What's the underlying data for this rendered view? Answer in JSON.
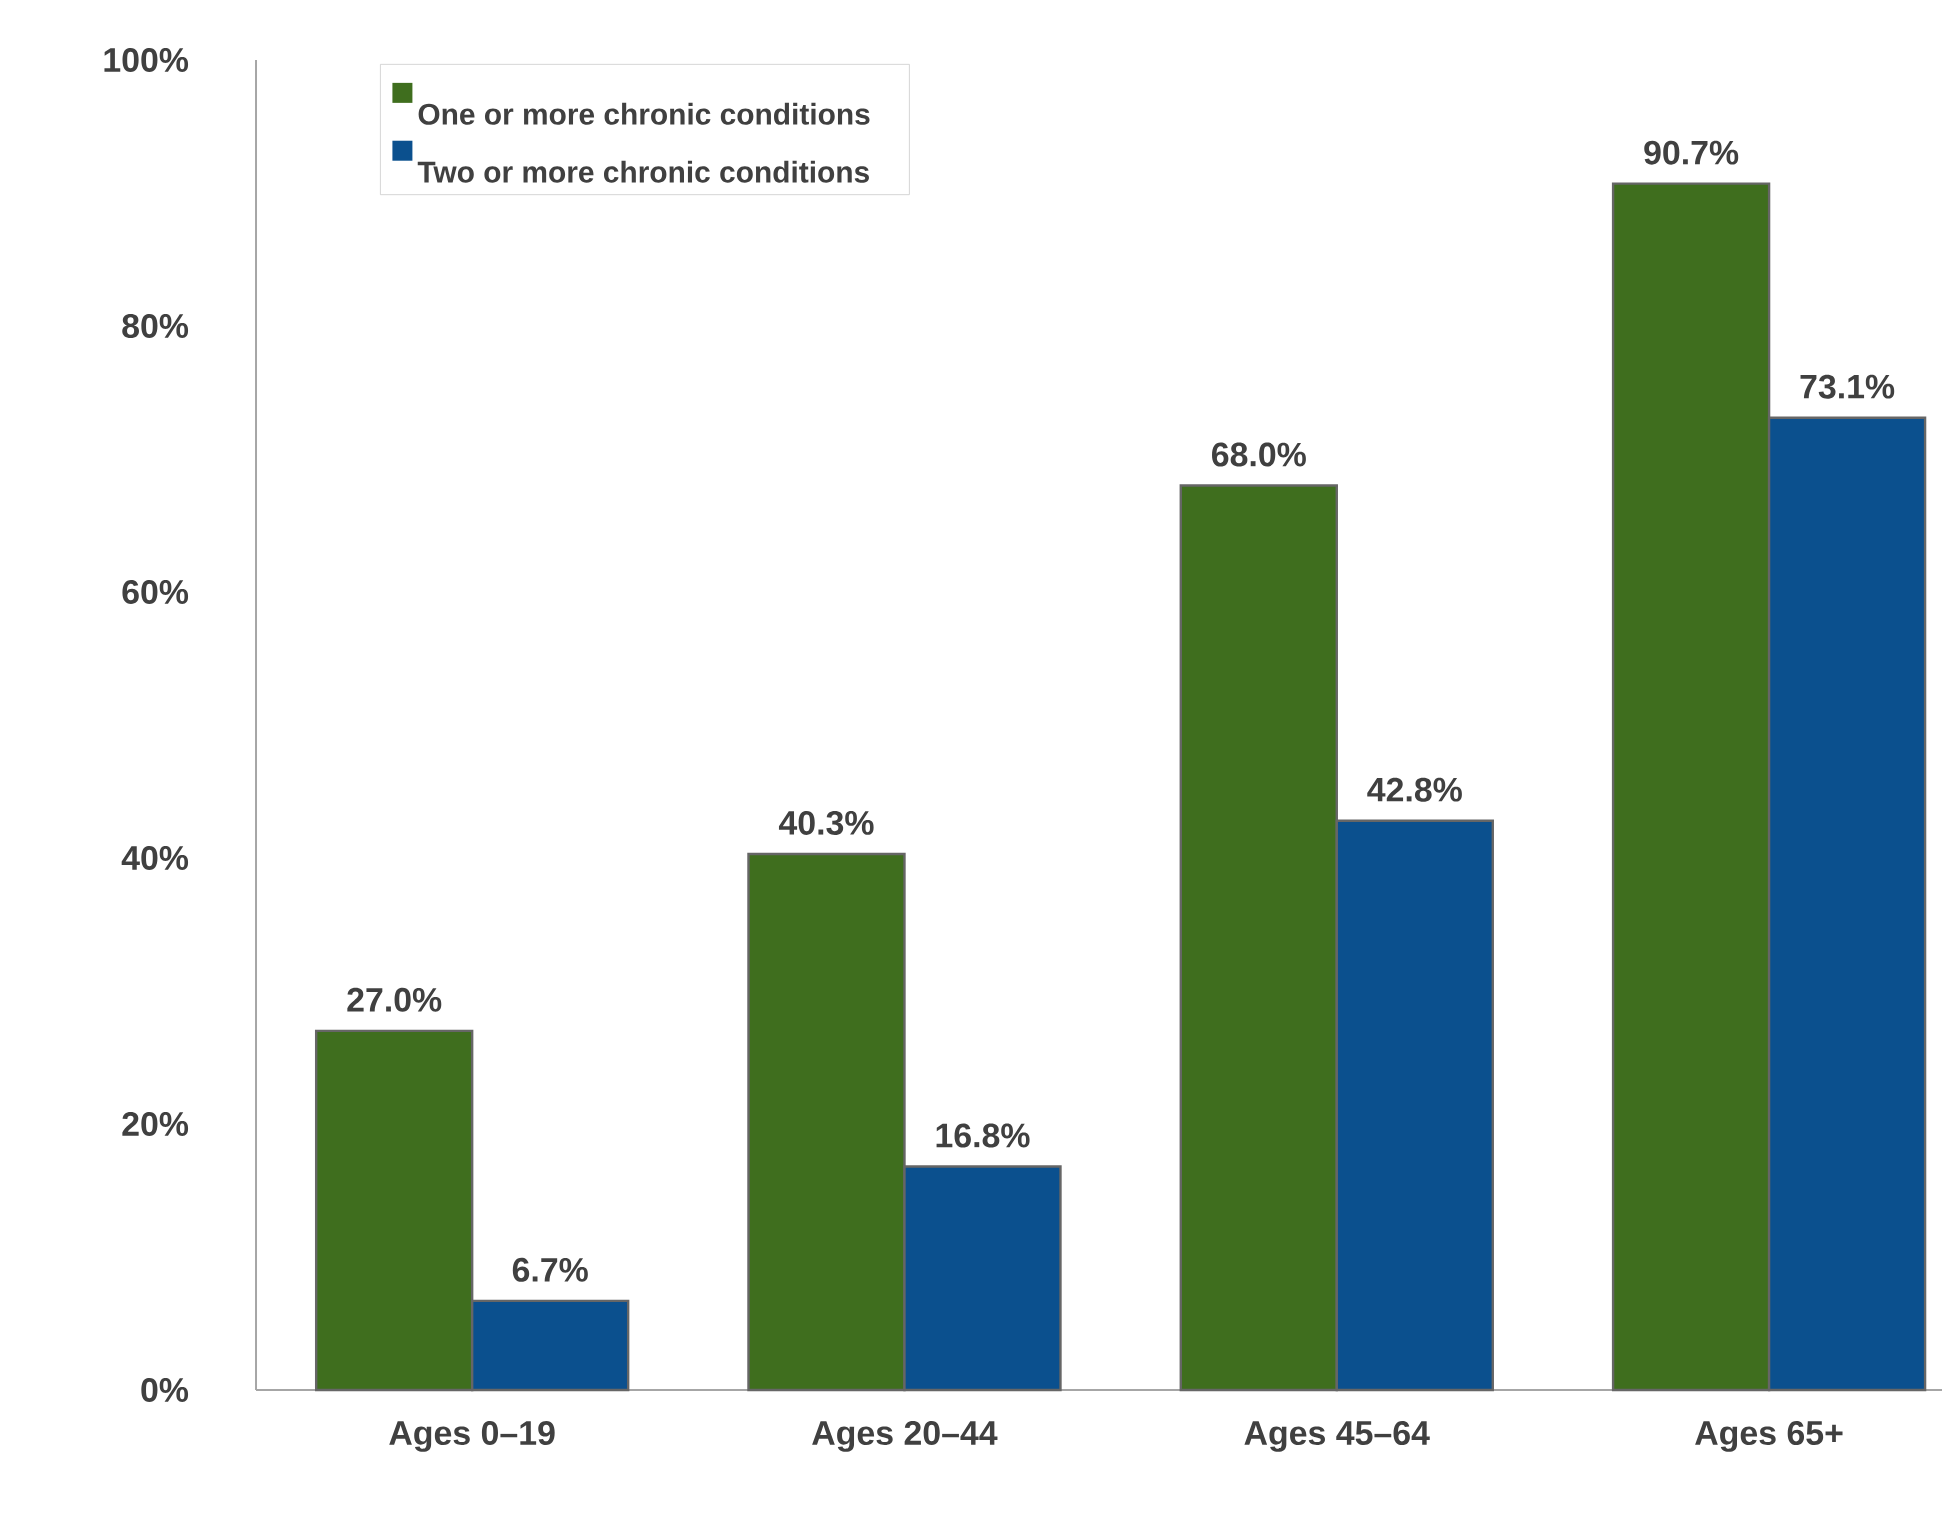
{
  "chart_data": {
    "type": "bar",
    "categories": [
      "Ages 0–19",
      "Ages 20–44",
      "Ages 45–64",
      "Ages 65+"
    ],
    "series": [
      {
        "name": "One or more chronic conditions",
        "color": "#3f6e1e",
        "values": [
          27.0,
          40.3,
          68.0,
          90.7
        ],
        "value_labels": [
          "27.0%",
          "40.3%",
          "68.0%",
          "90.7%"
        ]
      },
      {
        "name": "Two or more chronic conditions",
        "color": "#0b508e",
        "values": [
          6.7,
          16.8,
          42.8,
          73.1
        ],
        "value_labels": [
          "6.7%",
          "16.8%",
          "42.8%",
          "73.1%"
        ]
      }
    ],
    "ylim": [
      0,
      100
    ],
    "yticks": [
      {
        "value": 0,
        "label": "0%"
      },
      {
        "value": 20,
        "label": "20%"
      },
      {
        "value": 40,
        "label": "40%"
      },
      {
        "value": 60,
        "label": "60%"
      },
      {
        "value": 80,
        "label": "80%"
      },
      {
        "value": 100,
        "label": "100%"
      }
    ],
    "legend": "top left",
    "grid": false
  }
}
